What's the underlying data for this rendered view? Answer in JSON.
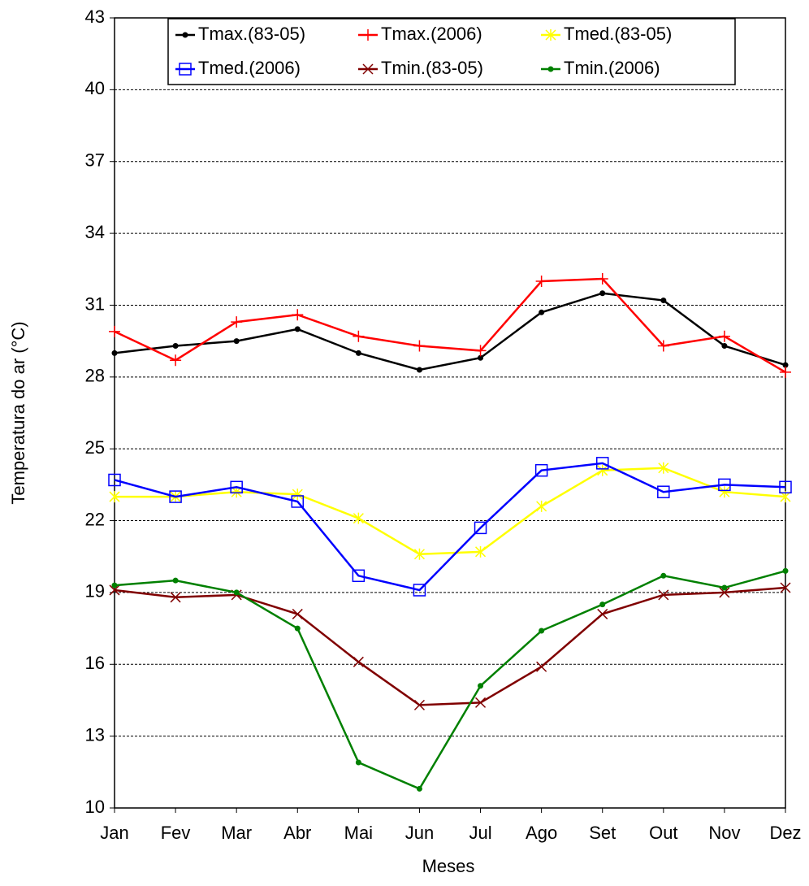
{
  "chart_data": {
    "type": "line",
    "x_label": "Meses",
    "y_label": "Temperatura do ar (°C)",
    "categories": [
      "Jan",
      "Fev",
      "Mar",
      "Abr",
      "Mai",
      "Jun",
      "Jul",
      "Ago",
      "Set",
      "Out",
      "Nov",
      "Dez"
    ],
    "ylim": [
      10,
      43
    ],
    "yticks": [
      10,
      13,
      16,
      19,
      22,
      25,
      28,
      31,
      34,
      37,
      40,
      43
    ],
    "grid": true,
    "legend": "top",
    "series": [
      {
        "name": "Tmax.(83-05)",
        "color": "#000000",
        "marker": "circle",
        "values": [
          29.0,
          29.3,
          29.5,
          30.0,
          29.0,
          28.3,
          28.8,
          30.7,
          31.5,
          31.2,
          29.3,
          28.5
        ]
      },
      {
        "name": "Tmax.(2006)",
        "color": "#ff0000",
        "marker": "plus",
        "values": [
          29.9,
          28.7,
          30.3,
          30.6,
          29.7,
          29.3,
          29.1,
          32.0,
          32.1,
          29.3,
          29.7,
          28.2
        ]
      },
      {
        "name": "Tmed.(83-05)",
        "color": "#ffff00",
        "marker": "star",
        "values": [
          23.0,
          23.0,
          23.2,
          23.1,
          22.1,
          20.6,
          20.7,
          22.6,
          24.1,
          24.2,
          23.2,
          23.0
        ]
      },
      {
        "name": "Tmed.(2006)",
        "color": "#0000ff",
        "marker": "square",
        "values": [
          23.7,
          23.0,
          23.4,
          22.8,
          19.7,
          19.1,
          21.7,
          24.1,
          24.4,
          23.2,
          23.5,
          23.4
        ]
      },
      {
        "name": "Tmin.(83-05)",
        "color": "#800000",
        "marker": "x",
        "values": [
          19.1,
          18.8,
          18.9,
          18.1,
          16.1,
          14.3,
          14.4,
          15.9,
          18.1,
          18.9,
          19.0,
          19.2
        ]
      },
      {
        "name": "Tmin.(2006)",
        "color": "#008000",
        "marker": "circle",
        "values": [
          19.3,
          19.5,
          19.0,
          17.5,
          11.9,
          10.8,
          15.1,
          17.4,
          18.5,
          19.7,
          19.2,
          19.9
        ]
      }
    ]
  }
}
